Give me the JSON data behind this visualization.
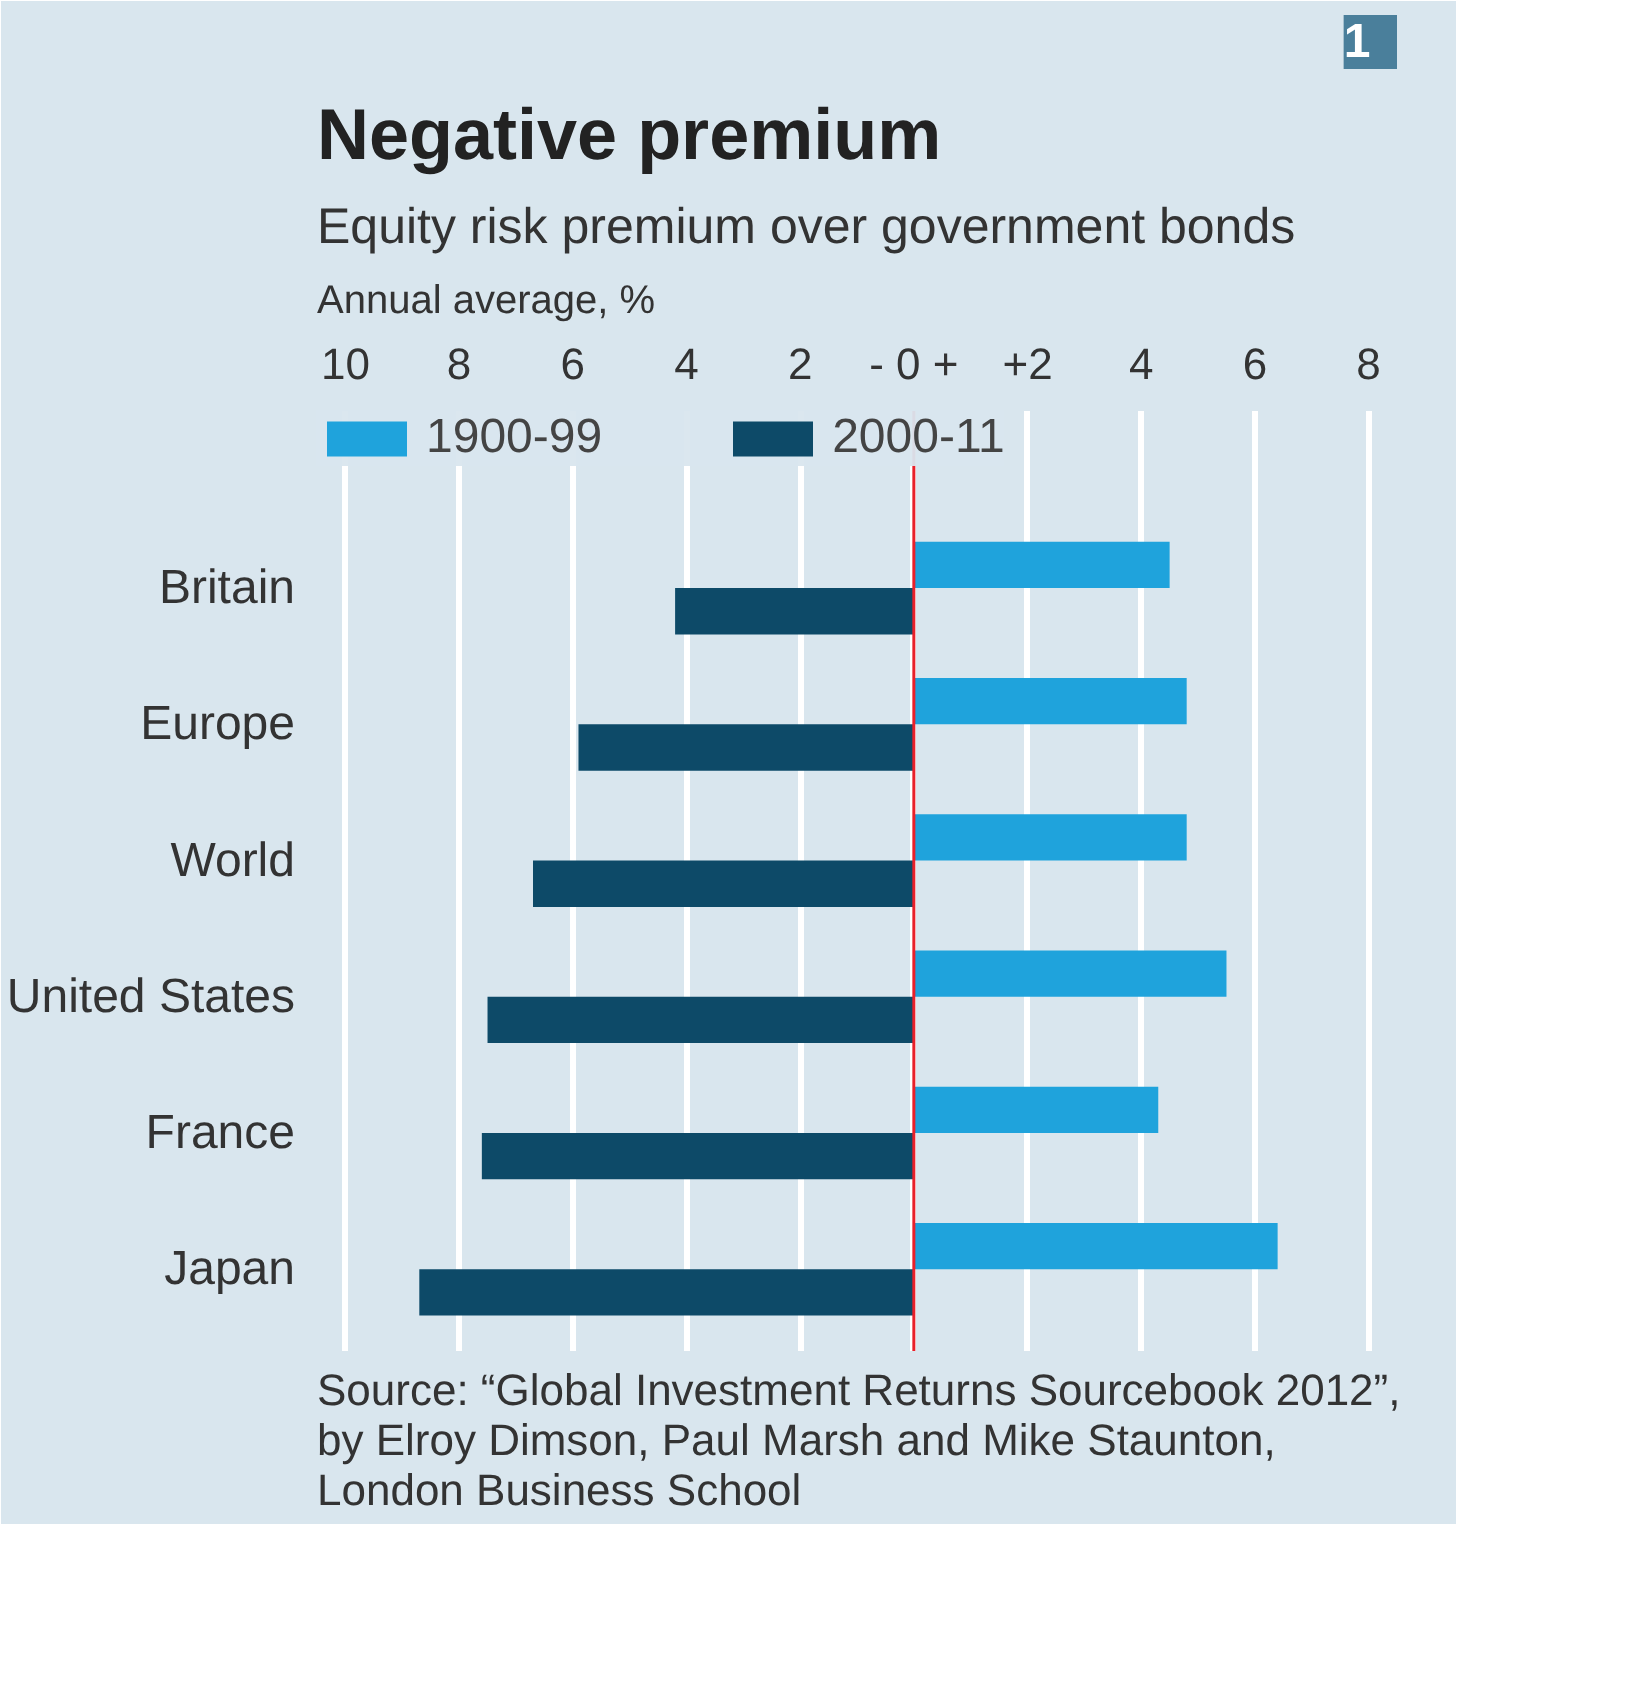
{
  "chart_data": {
    "type": "bar",
    "orientation": "horizontal",
    "title": "Negative premium",
    "subtitle": "Equity risk premium over government bonds",
    "categories": [
      "Britain",
      "Europe",
      "World",
      "United States",
      "France",
      "Japan"
    ],
    "series": [
      {
        "name": "1900-99",
        "color": "#1fa3dc",
        "values": [
          4.5,
          4.8,
          4.8,
          5.5,
          4.3,
          6.4
        ]
      },
      {
        "name": "2000-11",
        "color": "#0d4a68",
        "values": [
          -4.2,
          -5.9,
          -6.7,
          -7.5,
          -7.6,
          -8.7
        ]
      }
    ],
    "xlim": [
      -10.5,
      8.5
    ],
    "xticks": [
      {
        "value": -10,
        "label": "10"
      },
      {
        "value": -8,
        "label": "8"
      },
      {
        "value": -6,
        "label": "6"
      },
      {
        "value": -4,
        "label": "4"
      },
      {
        "value": -2,
        "label": "2"
      },
      {
        "value": 0,
        "label": "- 0 +"
      },
      {
        "value": 2,
        "label": "+2"
      },
      4,
      6,
      8
    ],
    "ref_lines": [
      {
        "axis": "x",
        "value": 0,
        "color": "#e8202a"
      }
    ],
    "grid": "x",
    "legend": "top left",
    "annotations": [
      "1",
      "Annual average, %",
      "Source: “Global Investment Returns Sourcebook 2012”, by Elroy Dimson, Paul Marsh and Mike Staunton, London Business School"
    ]
  }
}
